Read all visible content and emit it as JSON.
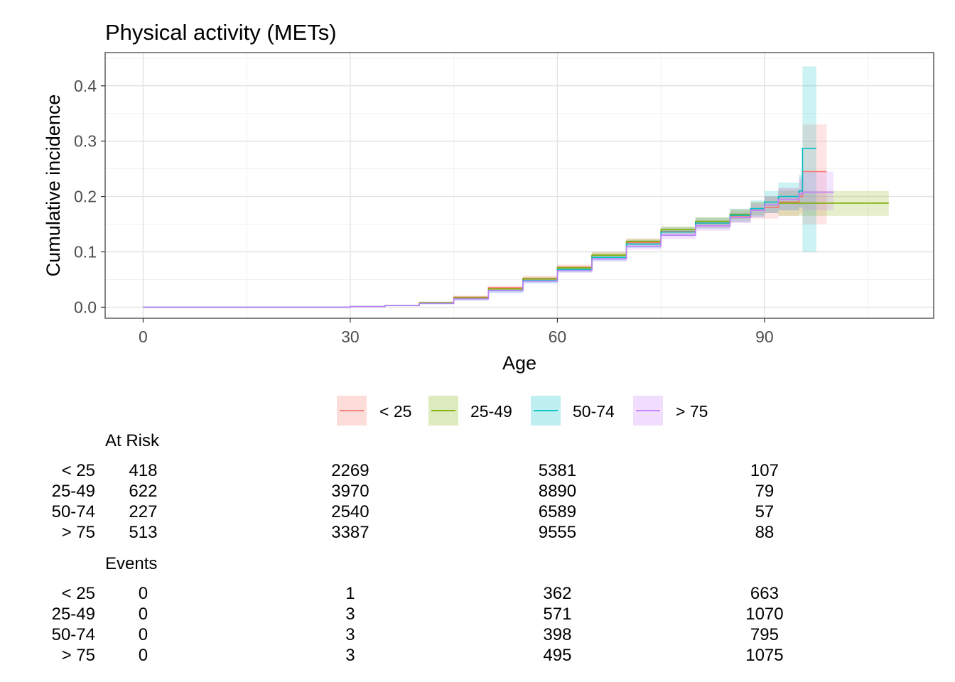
{
  "chart_data": {
    "type": "line",
    "title": "Physical activity (METs)",
    "xlabel": "Age",
    "ylabel": "Cumulative incidence",
    "xlim": [
      -5.5,
      114.5
    ],
    "ylim": [
      -0.02,
      0.46
    ],
    "x_ticks": [
      "0",
      "30",
      "60",
      "90"
    ],
    "x_tick_values": [
      0,
      30,
      60,
      90
    ],
    "y_ticks": [
      "0.0",
      "0.1",
      "0.2",
      "0.3",
      "0.4"
    ],
    "y_tick_values": [
      0.0,
      0.1,
      0.2,
      0.3,
      0.4
    ],
    "grid": true,
    "legend_position": "bottom",
    "series": [
      {
        "name": "< 25",
        "color": "#F8766D",
        "points": [
          [
            0,
            0
          ],
          [
            26,
            0
          ],
          [
            30,
            0.001
          ],
          [
            35,
            0.003
          ],
          [
            40,
            0.008
          ],
          [
            45,
            0.018
          ],
          [
            50,
            0.035
          ],
          [
            55,
            0.052
          ],
          [
            60,
            0.072
          ],
          [
            65,
            0.094
          ],
          [
            70,
            0.117
          ],
          [
            75,
            0.137
          ],
          [
            80,
            0.152
          ],
          [
            85,
            0.165
          ],
          [
            88,
            0.175
          ],
          [
            90,
            0.18
          ],
          [
            92,
            0.19
          ],
          [
            95,
            0.2
          ],
          [
            95.5,
            0.245
          ],
          [
            99,
            0.245
          ]
        ],
        "ci_upper": [
          [
            0,
            0
          ],
          [
            26,
            0
          ],
          [
            30,
            0.002
          ],
          [
            35,
            0.004
          ],
          [
            40,
            0.01
          ],
          [
            45,
            0.021
          ],
          [
            50,
            0.039
          ],
          [
            55,
            0.057
          ],
          [
            60,
            0.077
          ],
          [
            65,
            0.1
          ],
          [
            70,
            0.124
          ],
          [
            75,
            0.145
          ],
          [
            80,
            0.162
          ],
          [
            85,
            0.177
          ],
          [
            88,
            0.19
          ],
          [
            90,
            0.2
          ],
          [
            92,
            0.215
          ],
          [
            95,
            0.23
          ],
          [
            95.5,
            0.33
          ],
          [
            99,
            0.33
          ]
        ],
        "ci_lower": [
          [
            0,
            0
          ],
          [
            26,
            0
          ],
          [
            30,
            0.0
          ],
          [
            35,
            0.002
          ],
          [
            40,
            0.006
          ],
          [
            45,
            0.015
          ],
          [
            50,
            0.031
          ],
          [
            55,
            0.047
          ],
          [
            60,
            0.067
          ],
          [
            65,
            0.088
          ],
          [
            70,
            0.11
          ],
          [
            75,
            0.129
          ],
          [
            80,
            0.142
          ],
          [
            85,
            0.153
          ],
          [
            88,
            0.16
          ],
          [
            90,
            0.16
          ],
          [
            92,
            0.165
          ],
          [
            95,
            0.17
          ],
          [
            95.5,
            0.15
          ],
          [
            99,
            0.15
          ]
        ]
      },
      {
        "name": "25-49",
        "color": "#7CAE00",
        "points": [
          [
            0,
            0
          ],
          [
            26,
            0
          ],
          [
            30,
            0.001
          ],
          [
            35,
            0.003
          ],
          [
            40,
            0.008
          ],
          [
            45,
            0.017
          ],
          [
            50,
            0.033
          ],
          [
            55,
            0.051
          ],
          [
            60,
            0.071
          ],
          [
            65,
            0.094
          ],
          [
            70,
            0.119
          ],
          [
            75,
            0.14
          ],
          [
            80,
            0.155
          ],
          [
            85,
            0.168
          ],
          [
            88,
            0.178
          ],
          [
            90,
            0.185
          ],
          [
            92,
            0.188
          ],
          [
            108,
            0.188
          ]
        ],
        "ci_upper": [
          [
            0,
            0
          ],
          [
            26,
            0
          ],
          [
            30,
            0.002
          ],
          [
            35,
            0.004
          ],
          [
            40,
            0.01
          ],
          [
            45,
            0.02
          ],
          [
            50,
            0.036
          ],
          [
            55,
            0.055
          ],
          [
            60,
            0.075
          ],
          [
            65,
            0.099
          ],
          [
            70,
            0.124
          ],
          [
            75,
            0.146
          ],
          [
            80,
            0.162
          ],
          [
            85,
            0.177
          ],
          [
            88,
            0.19
          ],
          [
            90,
            0.2
          ],
          [
            92,
            0.21
          ],
          [
            108,
            0.21
          ]
        ],
        "ci_lower": [
          [
            0,
            0
          ],
          [
            26,
            0
          ],
          [
            30,
            0.0
          ],
          [
            35,
            0.002
          ],
          [
            40,
            0.006
          ],
          [
            45,
            0.014
          ],
          [
            50,
            0.03
          ],
          [
            55,
            0.047
          ],
          [
            60,
            0.067
          ],
          [
            65,
            0.089
          ],
          [
            70,
            0.114
          ],
          [
            75,
            0.134
          ],
          [
            80,
            0.148
          ],
          [
            85,
            0.159
          ],
          [
            88,
            0.166
          ],
          [
            90,
            0.17
          ],
          [
            92,
            0.165
          ],
          [
            108,
            0.165
          ]
        ]
      },
      {
        "name": "50-74",
        "color": "#00BFC4",
        "points": [
          [
            0,
            0
          ],
          [
            26,
            0
          ],
          [
            30,
            0.001
          ],
          [
            35,
            0.003
          ],
          [
            40,
            0.007
          ],
          [
            45,
            0.015
          ],
          [
            50,
            0.03
          ],
          [
            55,
            0.048
          ],
          [
            60,
            0.068
          ],
          [
            65,
            0.09
          ],
          [
            70,
            0.114
          ],
          [
            75,
            0.136
          ],
          [
            80,
            0.152
          ],
          [
            85,
            0.166
          ],
          [
            88,
            0.178
          ],
          [
            90,
            0.19
          ],
          [
            92,
            0.2
          ],
          [
            95,
            0.21
          ],
          [
            95.5,
            0.287
          ],
          [
            97.5,
            0.287
          ]
        ],
        "ci_upper": [
          [
            0,
            0
          ],
          [
            26,
            0
          ],
          [
            30,
            0.002
          ],
          [
            35,
            0.004
          ],
          [
            40,
            0.009
          ],
          [
            45,
            0.018
          ],
          [
            50,
            0.034
          ],
          [
            55,
            0.053
          ],
          [
            60,
            0.073
          ],
          [
            65,
            0.096
          ],
          [
            70,
            0.121
          ],
          [
            75,
            0.144
          ],
          [
            80,
            0.162
          ],
          [
            85,
            0.178
          ],
          [
            88,
            0.193
          ],
          [
            90,
            0.21
          ],
          [
            92,
            0.225
          ],
          [
            95,
            0.24
          ],
          [
            95.5,
            0.435
          ],
          [
            97.5,
            0.435
          ]
        ],
        "ci_lower": [
          [
            0,
            0
          ],
          [
            26,
            0
          ],
          [
            30,
            0.0
          ],
          [
            35,
            0.002
          ],
          [
            40,
            0.005
          ],
          [
            45,
            0.012
          ],
          [
            50,
            0.026
          ],
          [
            55,
            0.043
          ],
          [
            60,
            0.063
          ],
          [
            65,
            0.084
          ],
          [
            70,
            0.107
          ],
          [
            75,
            0.128
          ],
          [
            80,
            0.142
          ],
          [
            85,
            0.154
          ],
          [
            88,
            0.163
          ],
          [
            90,
            0.17
          ],
          [
            92,
            0.175
          ],
          [
            95,
            0.18
          ],
          [
            95.5,
            0.1
          ],
          [
            97.5,
            0.1
          ]
        ]
      },
      {
        "name": "> 75",
        "color": "#C77CFF",
        "points": [
          [
            0,
            0
          ],
          [
            26,
            0
          ],
          [
            30,
            0.001
          ],
          [
            35,
            0.003
          ],
          [
            40,
            0.007
          ],
          [
            45,
            0.015
          ],
          [
            50,
            0.03
          ],
          [
            55,
            0.047
          ],
          [
            60,
            0.066
          ],
          [
            65,
            0.087
          ],
          [
            70,
            0.11
          ],
          [
            75,
            0.13
          ],
          [
            80,
            0.147
          ],
          [
            85,
            0.162
          ],
          [
            88,
            0.175
          ],
          [
            90,
            0.185
          ],
          [
            92,
            0.195
          ],
          [
            95,
            0.205
          ],
          [
            95.5,
            0.208
          ],
          [
            100,
            0.208
          ]
        ],
        "ci_upper": [
          [
            0,
            0
          ],
          [
            26,
            0
          ],
          [
            30,
            0.002
          ],
          [
            35,
            0.004
          ],
          [
            40,
            0.009
          ],
          [
            45,
            0.018
          ],
          [
            50,
            0.034
          ],
          [
            55,
            0.051
          ],
          [
            60,
            0.07
          ],
          [
            65,
            0.092
          ],
          [
            70,
            0.116
          ],
          [
            75,
            0.137
          ],
          [
            80,
            0.156
          ],
          [
            85,
            0.172
          ],
          [
            88,
            0.187
          ],
          [
            90,
            0.2
          ],
          [
            92,
            0.215
          ],
          [
            95,
            0.235
          ],
          [
            95.5,
            0.245
          ],
          [
            100,
            0.245
          ]
        ],
        "ci_lower": [
          [
            0,
            0
          ],
          [
            26,
            0
          ],
          [
            30,
            0.0
          ],
          [
            35,
            0.002
          ],
          [
            40,
            0.005
          ],
          [
            45,
            0.012
          ],
          [
            50,
            0.026
          ],
          [
            55,
            0.043
          ],
          [
            60,
            0.062
          ],
          [
            65,
            0.082
          ],
          [
            70,
            0.104
          ],
          [
            75,
            0.123
          ],
          [
            80,
            0.138
          ],
          [
            85,
            0.152
          ],
          [
            88,
            0.162
          ],
          [
            90,
            0.17
          ],
          [
            92,
            0.175
          ],
          [
            95,
            0.18
          ],
          [
            95.5,
            0.175
          ],
          [
            100,
            0.175
          ]
        ]
      }
    ]
  },
  "risk_table": {
    "at_risk_title": "At Risk",
    "events_title": "Events",
    "groups": [
      "< 25",
      "25-49",
      "50-74",
      "> 75"
    ],
    "columns": [
      0,
      30,
      60,
      90
    ],
    "at_risk": [
      [
        "418",
        "2269",
        "5381",
        "107"
      ],
      [
        "622",
        "3970",
        "8890",
        "79"
      ],
      [
        "227",
        "2540",
        "6589",
        "57"
      ],
      [
        "513",
        "3387",
        "9555",
        "88"
      ]
    ],
    "events": [
      [
        "0",
        "1",
        "362",
        "663"
      ],
      [
        "0",
        "3",
        "571",
        "1070"
      ],
      [
        "0",
        "3",
        "398",
        "795"
      ],
      [
        "0",
        "3",
        "495",
        "1075"
      ]
    ]
  }
}
